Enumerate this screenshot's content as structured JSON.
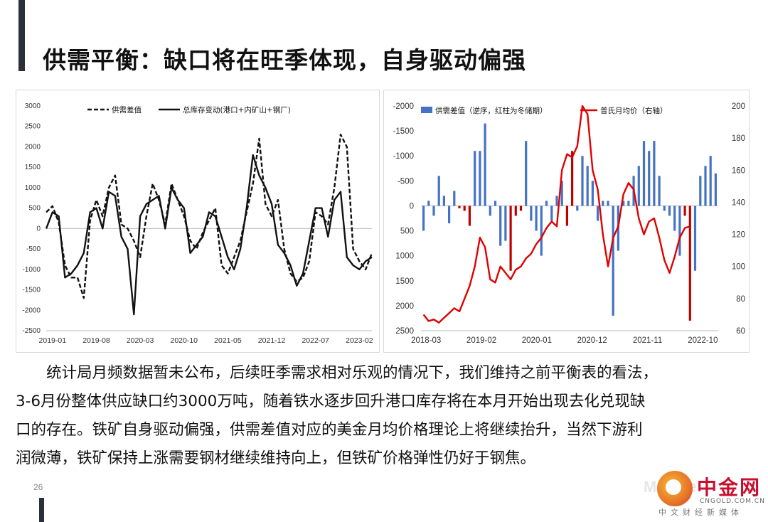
{
  "slide": {
    "title": "供需平衡：缺口将在旺季体现，自身驱动偏强",
    "page_number": "26",
    "body_lines": [
      "统计局月频数据暂未公布，后续旺季需求相对乐观的情况下，我们维持之前平衡表的看法，",
      "3-6月份整体供应缺口约3000万吨，随着铁水逐步回升港口库存将在本月开始出现去化兑现缺",
      "口的存在。铁矿自身驱动偏强，供需差值对应的美金月均价格理论上将继续抬升，当然下游利",
      "润微薄，铁矿保持上涨需要钢材继续维持向上，但铁矿价格弹性仍好于钢焦。"
    ]
  },
  "logo": {
    "name": "中金网",
    "domain": "CNGOLD.COM.CN",
    "tagline": "中文财经新媒体",
    "ghost": "Mysteel"
  },
  "colors": {
    "accent": "#2b2f3a",
    "bar_blue": "#4472c4",
    "bar_red": "#c00000",
    "line_red": "#e00000",
    "logo_red": "#c8102e"
  },
  "chart_data": [
    {
      "type": "line",
      "legend": [
        "供需差值",
        "总库存变动(港口+内矿山+钢厂)"
      ],
      "legend_position": "top",
      "x_ticks": [
        "2019-01",
        "2019-08",
        "2020-03",
        "2020-10",
        "2021-05",
        "2021-12",
        "2022-07",
        "2023-02"
      ],
      "y_ticks": [
        3000,
        2500,
        2000,
        1500,
        1000,
        500,
        0,
        -500,
        -1000,
        -1500,
        -2000,
        -2500
      ],
      "ylim": [
        -2500,
        3000
      ],
      "x_range": [
        0,
        52
      ],
      "series": [
        {
          "name": "供需差值",
          "style": "dashed",
          "x": [
            0,
            1,
            2,
            3,
            4,
            5,
            6,
            7,
            8,
            9,
            10,
            11,
            12,
            13,
            14,
            15,
            16,
            17,
            18,
            19,
            20,
            21,
            22,
            23,
            24,
            25,
            26,
            27,
            28,
            29,
            30,
            31,
            32,
            33,
            34,
            35,
            36,
            37,
            38,
            39,
            40,
            41,
            42,
            43,
            44,
            45,
            46,
            47,
            48,
            49,
            50,
            51,
            52
          ],
          "y": [
            400,
            550,
            150,
            -900,
            -1200,
            -1200,
            -1700,
            200,
            700,
            300,
            1000,
            1300,
            100,
            0,
            -300,
            -700,
            300,
            1100,
            700,
            100,
            1100,
            700,
            300,
            -300,
            -500,
            -100,
            200,
            500,
            -900,
            -1100,
            -700,
            -300,
            400,
            1100,
            2200,
            600,
            300,
            700,
            -500,
            -1100,
            -1300,
            -1200,
            -800,
            400,
            300,
            100,
            1000,
            2300,
            2000,
            -500,
            -800,
            -1000,
            -600
          ]
        },
        {
          "name": "总库存变动(港口+内矿山+钢厂)",
          "style": "solid",
          "x": [
            0,
            1,
            2,
            3,
            4,
            5,
            6,
            7,
            8,
            9,
            10,
            11,
            12,
            13,
            14,
            15,
            16,
            17,
            18,
            19,
            20,
            21,
            22,
            23,
            24,
            25,
            26,
            27,
            28,
            29,
            30,
            31,
            32,
            33,
            34,
            35,
            36,
            37,
            38,
            39,
            40,
            41,
            42,
            43,
            44,
            45,
            46,
            47,
            48,
            49,
            50,
            51,
            52
          ],
          "y": [
            0,
            400,
            300,
            -1200,
            -1100,
            -900,
            -600,
            400,
            500,
            0,
            900,
            800,
            -200,
            -500,
            -2100,
            300,
            600,
            700,
            800,
            0,
            1000,
            700,
            500,
            -600,
            -400,
            -200,
            400,
            300,
            -200,
            -700,
            -1000,
            -500,
            500,
            1800,
            1300,
            1000,
            600,
            -400,
            -600,
            -900,
            -1400,
            -1100,
            -300,
            500,
            500,
            -200,
            700,
            900,
            -700,
            -900,
            -1000,
            -800,
            -700
          ]
        }
      ]
    },
    {
      "type": "bar+line",
      "legend": [
        "供需差值（逆序，红柱为冬储期）",
        "普氏月均价（右轴）"
      ],
      "legend_position": "top",
      "x_ticks": [
        "2018-03",
        "2019-02",
        "2020-01",
        "2020-12",
        "2021-11",
        "2022-10"
      ],
      "left_y_ticks": [
        -2000,
        -1500,
        -1000,
        -500,
        0,
        500,
        1000,
        1500,
        2000,
        2500
      ],
      "left_ylim_reversed": [
        -2000,
        2500
      ],
      "right_y_ticks": [
        200,
        180,
        160,
        140,
        120,
        100,
        80,
        60
      ],
      "right_ylim": [
        60,
        200
      ],
      "x_range": [
        0,
        57
      ],
      "bars": [
        {
          "x": 0,
          "value": 500,
          "winter": false
        },
        {
          "x": 1,
          "value": -100,
          "winter": false
        },
        {
          "x": 2,
          "value": 200,
          "winter": false
        },
        {
          "x": 3,
          "value": -600,
          "winter": false
        },
        {
          "x": 4,
          "value": -200,
          "winter": false
        },
        {
          "x": 5,
          "value": 350,
          "winter": false
        },
        {
          "x": 6,
          "value": -300,
          "winter": false
        },
        {
          "x": 7,
          "value": 50,
          "winter": true
        },
        {
          "x": 8,
          "value": 100,
          "winter": true
        },
        {
          "x": 9,
          "value": 400,
          "winter": true
        },
        {
          "x": 10,
          "value": -1100,
          "winter": false
        },
        {
          "x": 11,
          "value": -1100,
          "winter": false
        },
        {
          "x": 12,
          "value": -1650,
          "winter": false
        },
        {
          "x": 13,
          "value": 200,
          "winter": false
        },
        {
          "x": 14,
          "value": -100,
          "winter": false
        },
        {
          "x": 15,
          "value": 800,
          "winter": false
        },
        {
          "x": 16,
          "value": 700,
          "winter": false
        },
        {
          "x": 17,
          "value": 1300,
          "winter": true
        },
        {
          "x": 18,
          "value": 200,
          "winter": true
        },
        {
          "x": 19,
          "value": 100,
          "winter": true
        },
        {
          "x": 20,
          "value": -1300,
          "winter": false
        },
        {
          "x": 21,
          "value": 300,
          "winter": false
        },
        {
          "x": 22,
          "value": 500,
          "winter": false
        },
        {
          "x": 23,
          "value": 1000,
          "winter": false
        },
        {
          "x": 24,
          "value": -100,
          "winter": false
        },
        {
          "x": 25,
          "value": 300,
          "winter": false
        },
        {
          "x": 26,
          "value": -200,
          "winter": false
        },
        {
          "x": 27,
          "value": -500,
          "winter": false
        },
        {
          "x": 28,
          "value": 400,
          "winter": true
        },
        {
          "x": 29,
          "value": -1100,
          "winter": true
        },
        {
          "x": 30,
          "value": 100,
          "winter": false
        },
        {
          "x": 31,
          "value": -1000,
          "winter": false
        },
        {
          "x": 32,
          "value": -800,
          "winter": false
        },
        {
          "x": 33,
          "value": -500,
          "winter": false
        },
        {
          "x": 34,
          "value": 300,
          "winter": false
        },
        {
          "x": 35,
          "value": -100,
          "winter": false
        },
        {
          "x": 36,
          "value": -100,
          "winter": false
        },
        {
          "x": 37,
          "value": 2200,
          "winter": false
        },
        {
          "x": 38,
          "value": 900,
          "winter": false
        },
        {
          "x": 39,
          "value": -100,
          "winter": false
        },
        {
          "x": 40,
          "value": -100,
          "winter": false
        },
        {
          "x": 41,
          "value": -600,
          "winter": false
        },
        {
          "x": 42,
          "value": -800,
          "winter": false
        },
        {
          "x": 43,
          "value": -1300,
          "winter": false
        },
        {
          "x": 44,
          "value": -1100,
          "winter": false
        },
        {
          "x": 45,
          "value": -1300,
          "winter": false
        },
        {
          "x": 46,
          "value": -600,
          "winter": false
        },
        {
          "x": 47,
          "value": 100,
          "winter": false
        },
        {
          "x": 48,
          "value": 200,
          "winter": false
        },
        {
          "x": 49,
          "value": 500,
          "winter": false
        },
        {
          "x": 50,
          "value": 1000,
          "winter": false
        },
        {
          "x": 51,
          "value": 200,
          "winter": true
        },
        {
          "x": 52,
          "value": 2300,
          "winter": true
        },
        {
          "x": 53,
          "value": 1300,
          "winter": false
        },
        {
          "x": 54,
          "value": -600,
          "winter": false
        },
        {
          "x": 55,
          "value": -800,
          "winter": false
        },
        {
          "x": 56,
          "value": -1000,
          "winter": false
        },
        {
          "x": 57,
          "value": -650,
          "winter": false
        }
      ],
      "line": {
        "name": "普氏月均价（右轴）",
        "x": [
          0,
          1,
          2,
          3,
          4,
          5,
          6,
          7,
          8,
          9,
          10,
          11,
          12,
          13,
          14,
          15,
          16,
          17,
          18,
          19,
          20,
          21,
          22,
          23,
          24,
          25,
          26,
          27,
          28,
          29,
          30,
          31,
          32,
          33,
          34,
          35,
          36,
          37,
          38,
          39,
          40,
          41,
          42,
          43,
          44,
          45,
          46,
          47,
          48,
          49,
          50,
          51,
          52
        ],
        "y": [
          70,
          66,
          67,
          65,
          68,
          71,
          74,
          72,
          80,
          88,
          100,
          118,
          112,
          92,
          90,
          100,
          96,
          92,
          98,
          100,
          105,
          108,
          114,
          118,
          124,
          128,
          125,
          160,
          170,
          168,
          175,
          200,
          195,
          160,
          148,
          120,
          100,
          118,
          125,
          145,
          152,
          148,
          130,
          120,
          128,
          130,
          118,
          104,
          96,
          106,
          118,
          124,
          125
        ]
      }
    }
  ]
}
